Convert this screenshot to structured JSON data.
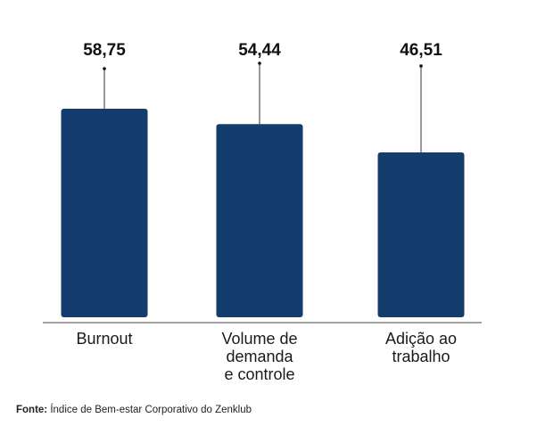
{
  "chart_data": {
    "type": "bar",
    "categories": [
      [
        "Burnout"
      ],
      [
        "Volume de",
        "demanda",
        "e controle"
      ],
      [
        "Adição ao",
        "trabalho"
      ]
    ],
    "values": [
      58.75,
      54.44,
      46.51
    ],
    "value_labels": [
      "58,75",
      "54,44",
      "46,51"
    ],
    "title": "",
    "xlabel": "",
    "ylabel": "",
    "ylim": [
      0,
      65
    ],
    "grid": false,
    "legend": "none",
    "bar_color": "#143d6e"
  },
  "source": {
    "label": "Fonte:",
    "text": "Índice de Bem-estar Corporativo do Zenklub"
  }
}
